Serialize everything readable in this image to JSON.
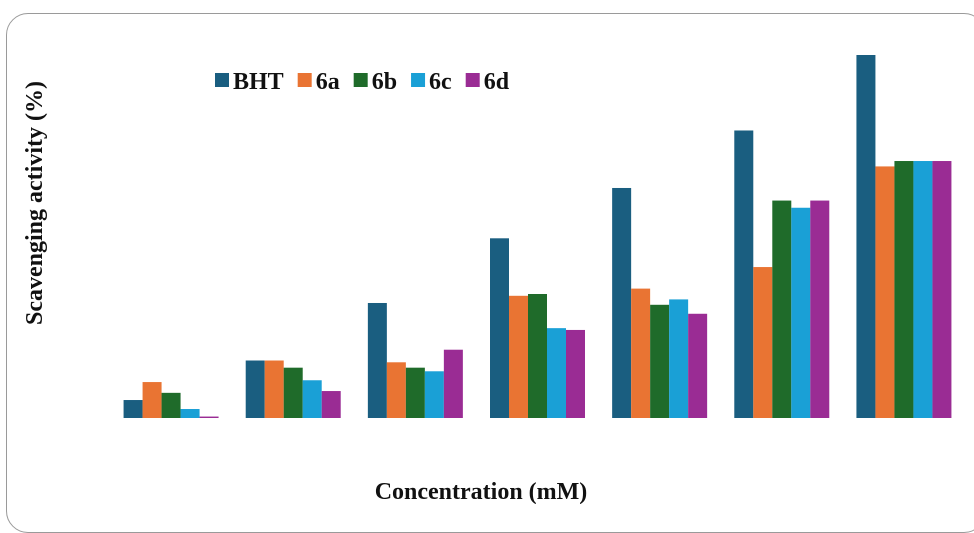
{
  "chart_data": {
    "type": "bar",
    "title": "",
    "xlabel": "Concentration (mM)",
    "ylabel": "Scavenging activity (%)",
    "categories": [
      "",
      "",
      "",
      "",
      "",
      "",
      ""
    ],
    "ylim": [
      0,
      100
    ],
    "grid": false,
    "legend_position": "top-left",
    "series": [
      {
        "name": "BHT",
        "color": "#1a5e80",
        "values": [
          5,
          16,
          32,
          50,
          64,
          80,
          101
        ]
      },
      {
        "name": "6a",
        "color": "#e97433",
        "values": [
          10,
          16,
          15.5,
          34,
          36,
          42,
          70
        ]
      },
      {
        "name": "6b",
        "color": "#1f6b2a",
        "values": [
          7,
          14,
          14,
          34.5,
          31.5,
          60.5,
          71.5
        ]
      },
      {
        "name": "6c",
        "color": "#1aa0d6",
        "values": [
          2.5,
          10.5,
          13,
          25,
          33,
          58.5,
          71.5
        ]
      },
      {
        "name": "6d",
        "color": "#9a2c94",
        "values": [
          0.4,
          7.5,
          19,
          24.5,
          29,
          60.5,
          71.5
        ]
      }
    ]
  }
}
